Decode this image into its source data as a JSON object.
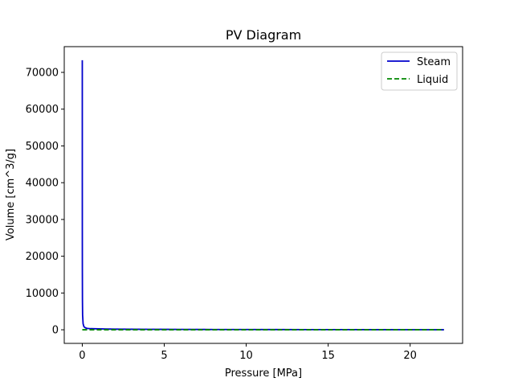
{
  "chart_data": {
    "type": "line",
    "title": "PV Diagram",
    "xlabel": "Pressure [MPa]",
    "ylabel": "Volume [cm^3/g]",
    "xlim": [
      -1.1,
      23.2
    ],
    "ylim": [
      -3700,
      77000
    ],
    "xticks": [
      0,
      5,
      10,
      15,
      20
    ],
    "yticks": [
      0,
      10000,
      20000,
      30000,
      40000,
      50000,
      60000,
      70000
    ],
    "xtick_labels": [
      "0",
      "5",
      "10",
      "15",
      "20"
    ],
    "ytick_labels": [
      "0",
      "10000",
      "20000",
      "30000",
      "40000",
      "50000",
      "60000",
      "70000"
    ],
    "grid": false,
    "legend_position": "top-right",
    "series": [
      {
        "name": "Steam",
        "color": "#0000cc",
        "style": "solid",
        "x": [
          0.001,
          0.002,
          0.003,
          0.005,
          0.01,
          0.02,
          0.05,
          0.1,
          0.2,
          0.3,
          0.5,
          0.75,
          1.0,
          1.5,
          2,
          3,
          4,
          5,
          6,
          8,
          10,
          12,
          14,
          16,
          18,
          20,
          21,
          22.06
        ],
        "y": [
          73300,
          40000,
          27000,
          16500,
          8100,
          4000,
          1650,
          850,
          500,
          380,
          300,
          280,
          250,
          200,
          170,
          140,
          120,
          110,
          100,
          80,
          70,
          60,
          50,
          40,
          30,
          20,
          15,
          3
        ]
      },
      {
        "name": "Liquid",
        "color": "#008800",
        "style": "dashed",
        "x": [
          0.001,
          1,
          2,
          4,
          6,
          8,
          10,
          12,
          14,
          16,
          18,
          20,
          22.06
        ],
        "y": [
          1.0,
          1.13,
          1.18,
          1.25,
          1.32,
          1.38,
          1.45,
          1.53,
          1.61,
          1.71,
          1.84,
          2.04,
          3.1
        ]
      }
    ]
  }
}
